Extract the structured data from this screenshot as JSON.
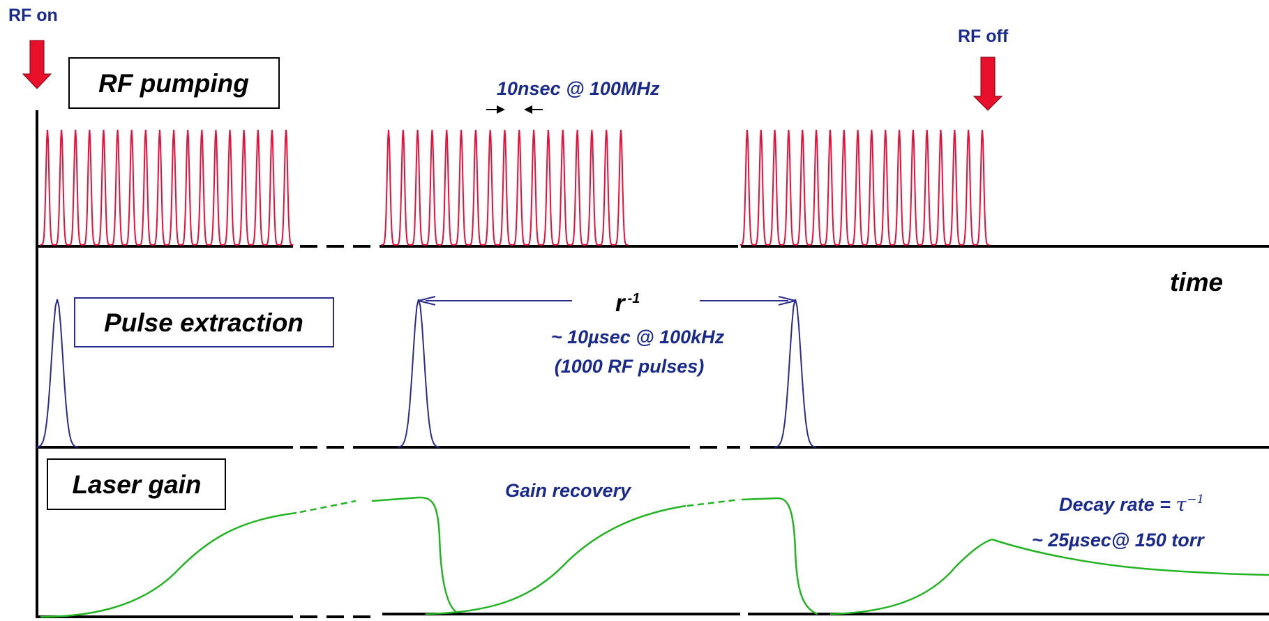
{
  "labels": {
    "rf_on": "RF on",
    "rf_off": "RF off",
    "rf_pumping": "RF pumping",
    "pulse_spacing": "10nsec @ 100MHz",
    "time": "time",
    "pulse_extraction": "Pulse extraction",
    "rep_rate_symbol": "r",
    "rep_rate_exponent": "-1",
    "rep_period": "~ 10µsec @ 100kHz",
    "rf_pulse_count": "(1000 RF pulses)",
    "laser_gain": "Laser gain",
    "gain_recovery": "Gain recovery",
    "decay_rate_prefix": "Decay rate = ",
    "decay_rate_symbol": "τ",
    "decay_rate_exponent": "−1",
    "decay_time": "~ 25µsec@ 150 torr"
  },
  "colors": {
    "rf_pulses": "#e8103a",
    "extraction_pulses": "#2b2b8f",
    "gain_curve": "#22b422",
    "annotation_text": "#1a2a8c",
    "arrow_fill": "#e8102a",
    "axis": "#000000"
  }
}
